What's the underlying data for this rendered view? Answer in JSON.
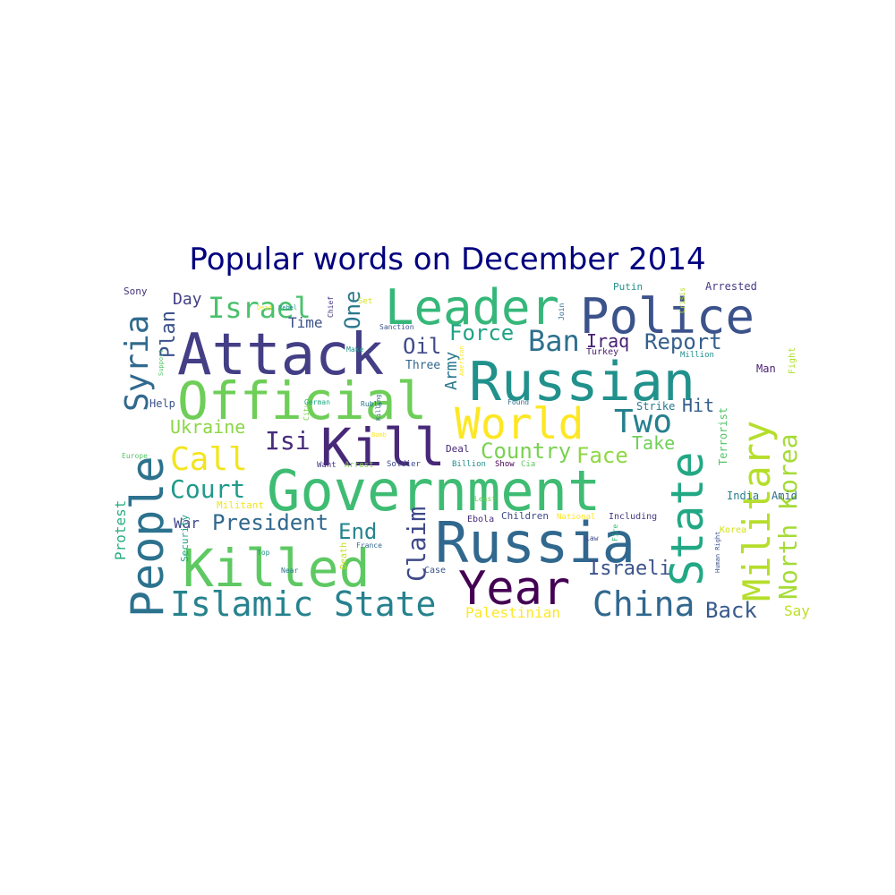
{
  "chart_data": {
    "type": "wordcloud",
    "title": "Popular words on December 2014",
    "grid": false,
    "colormap": "viridis",
    "colors": {
      "title": "#00007f",
      "background": "#ffffff"
    },
    "words": [
      {
        "text": "Government",
        "color": "#3fbc73"
      },
      {
        "text": "Attack",
        "color": "#433e85"
      },
      {
        "text": "Russian",
        "color": "#21918c"
      },
      {
        "text": "Police",
        "color": "#3b528b"
      },
      {
        "text": "Russia",
        "color": "#31688e"
      },
      {
        "text": "Leader",
        "color": "#35b779"
      },
      {
        "text": "Official",
        "color": "#6ece58"
      },
      {
        "text": "Killed",
        "color": "#5ec962"
      },
      {
        "text": "People",
        "color": "#2c728e"
      },
      {
        "text": "State",
        "color": "#22a884"
      },
      {
        "text": "Military",
        "color": "#b5de2b"
      },
      {
        "text": "Kill",
        "color": "#482878"
      },
      {
        "text": "World",
        "color": "#fde725"
      },
      {
        "text": "Year",
        "color": "#440154"
      },
      {
        "text": "Islamic State",
        "color": "#26828e"
      },
      {
        "text": "Syria",
        "color": "#306a8e"
      },
      {
        "text": "China",
        "color": "#31688e"
      },
      {
        "text": "North Korea",
        "color": "#a5db36"
      },
      {
        "text": "Israel",
        "color": "#4ac16d"
      },
      {
        "text": "Call",
        "color": "#f1e51d"
      },
      {
        "text": "Two",
        "color": "#277f8e"
      },
      {
        "text": "Court",
        "color": "#1f9a8a"
      },
      {
        "text": "Claim",
        "color": "#3e4989"
      },
      {
        "text": "Ban",
        "color": "#2d708e"
      },
      {
        "text": "Isi",
        "color": "#472d7b"
      },
      {
        "text": "Force",
        "color": "#20a386"
      },
      {
        "text": "Report",
        "color": "#355f8d"
      },
      {
        "text": "Country",
        "color": "#7ad151"
      },
      {
        "text": "President",
        "color": "#31688e"
      },
      {
        "text": "Israeli",
        "color": "#3b528b"
      },
      {
        "text": "Back",
        "color": "#38598c"
      },
      {
        "text": "Plan",
        "color": "#3b528b"
      },
      {
        "text": "Face",
        "color": "#8fd744"
      },
      {
        "text": "End",
        "color": "#25848e"
      },
      {
        "text": "One",
        "color": "#2a788e"
      },
      {
        "text": "Oil",
        "color": "#3e4a89"
      },
      {
        "text": "Iraq",
        "color": "#482173"
      },
      {
        "text": "Ukraine",
        "color": "#8bd646"
      },
      {
        "text": "Take",
        "color": "#70cf57"
      },
      {
        "text": "Hit",
        "color": "#355e8d"
      },
      {
        "text": "Army",
        "color": "#2a788e"
      },
      {
        "text": "Day",
        "color": "#424086"
      },
      {
        "text": "Time",
        "color": "#3b518b"
      },
      {
        "text": "Protest",
        "color": "#29af7f"
      },
      {
        "text": "War",
        "color": "#3e4a89"
      },
      {
        "text": "Palestinian",
        "color": "#fde725"
      },
      {
        "text": "Say",
        "color": "#bddf26"
      },
      {
        "text": "Three",
        "color": "#31688e"
      },
      {
        "text": "Terrorist",
        "color": "#54c568"
      },
      {
        "text": "Arrested",
        "color": "#443983"
      },
      {
        "text": "Putin",
        "color": "#21918c"
      },
      {
        "text": "Sony",
        "color": "#46327e"
      },
      {
        "text": "Fight",
        "color": "#b0dd2f"
      },
      {
        "text": "Man",
        "color": "#481f70"
      },
      {
        "text": "India",
        "color": "#277f8e"
      },
      {
        "text": "Amid",
        "color": "#2e6e8e"
      },
      {
        "text": "Help",
        "color": "#3b528b"
      },
      {
        "text": "Strike",
        "color": "#2a788e"
      },
      {
        "text": "Children",
        "color": "#3e4989"
      },
      {
        "text": "Including",
        "color": "#443983"
      },
      {
        "text": "Korea",
        "color": "#d2e21b"
      },
      {
        "text": "Deal",
        "color": "#482878"
      },
      {
        "text": "Militant",
        "color": "#f1e51d"
      },
      {
        "text": "Security",
        "color": "#20a386"
      },
      {
        "text": "Turkey",
        "color": "#481a6c"
      },
      {
        "text": "Million",
        "color": "#21918c"
      },
      {
        "text": "Ebola",
        "color": "#472c7a"
      },
      {
        "text": "National",
        "color": "#fde725"
      },
      {
        "text": "Soldier",
        "color": "#3e4989"
      },
      {
        "text": "Billion",
        "color": "#21918c"
      },
      {
        "text": "Show",
        "color": "#440154"
      },
      {
        "text": "Cia",
        "color": "#5ec962"
      },
      {
        "text": "Want",
        "color": "#443983"
      },
      {
        "text": "Arrest",
        "color": "#7ad151"
      },
      {
        "text": "Europe",
        "color": "#54c568"
      },
      {
        "text": "Death",
        "color": "#c8e020"
      },
      {
        "text": "Case",
        "color": "#3b528b"
      },
      {
        "text": "France",
        "color": "#31688e"
      },
      {
        "text": "Near",
        "color": "#2a788e"
      },
      {
        "text": "Top",
        "color": "#21918c"
      },
      {
        "text": "Law",
        "color": "#3e4a89"
      },
      {
        "text": "Fire",
        "color": "#35b779"
      },
      {
        "text": "Human Right",
        "color": "#3b528b"
      },
      {
        "text": "Least",
        "color": "#6ece58"
      },
      {
        "text": "Found",
        "color": "#2c728e"
      },
      {
        "text": "German",
        "color": "#22a884"
      },
      {
        "text": "City",
        "color": "#7ad151"
      },
      {
        "text": "Killing",
        "color": "#31688e"
      },
      {
        "text": "Ruble",
        "color": "#2a788e"
      },
      {
        "text": "Make",
        "color": "#21918c"
      },
      {
        "text": "Sanction",
        "color": "#3b528b"
      },
      {
        "text": "Set",
        "color": "#d8e219"
      },
      {
        "text": "Chief",
        "color": "#443983"
      },
      {
        "text": "Dead",
        "color": "#fde725"
      },
      {
        "text": "Rebel",
        "color": "#21918c"
      },
      {
        "text": "Join",
        "color": "#31688e"
      },
      {
        "text": "Crisis",
        "color": "#b5de2b"
      },
      {
        "text": "Support",
        "color": "#54c568"
      },
      {
        "text": "American",
        "color": "#fde725"
      },
      {
        "text": "Bomb",
        "color": "#fde725"
      }
    ]
  }
}
